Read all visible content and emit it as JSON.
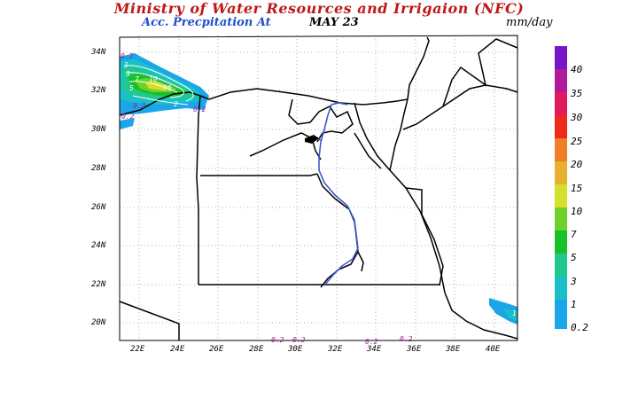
{
  "header": {
    "title": "Ministry of Water Resources and Irrigaion (NFC)",
    "subtitle_product": "Acc. Precpitation  At",
    "subtitle_date": "MAY 23",
    "units": "mm/day"
  },
  "map": {
    "lat_labels": [
      "34N",
      "32N",
      "30N",
      "28N",
      "26N",
      "24N",
      "22N",
      "20N"
    ],
    "lon_labels": [
      "22E",
      "24E",
      "26E",
      "28E",
      "30E",
      "32E",
      "34E",
      "36E",
      "38E",
      "40E"
    ],
    "contour_labels": [
      "0.2",
      "1",
      "3",
      "7",
      "10",
      "10",
      "5",
      "2",
      "0.2",
      "0.2",
      "0.2",
      "1",
      "0.2",
      "0.2",
      "0.2",
      "0.2"
    ]
  },
  "colorbar": {
    "levels": [
      "0.2",
      "1",
      "3",
      "5",
      "7",
      "10",
      "15",
      "20",
      "25",
      "30",
      "35",
      "40"
    ],
    "colors": [
      "#1aa6e8",
      "#19c0c8",
      "#1fc890",
      "#18c02a",
      "#6fd22a",
      "#d4e02a",
      "#e8b030",
      "#f07e28",
      "#f02a1a",
      "#e01a60",
      "#b01a9a",
      "#7a14c8"
    ]
  }
}
